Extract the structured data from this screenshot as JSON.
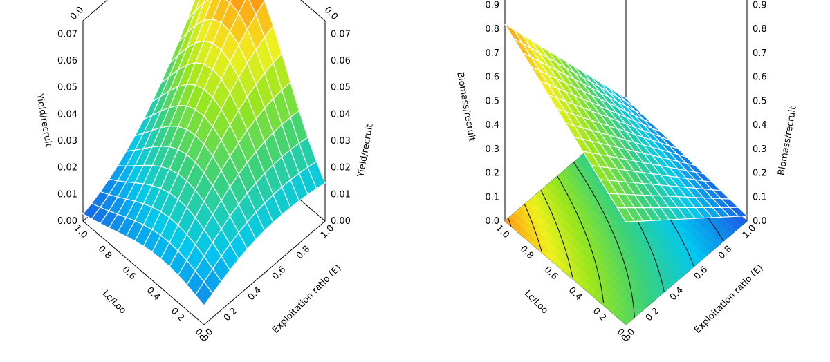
{
  "chart_data": [
    {
      "type": "surface3d",
      "title": "",
      "x_axis": {
        "label": "Exploitation ratio (E)",
        "ticks": [
          "0.0",
          "0.2",
          "0.4",
          "0.6",
          "0.8",
          "1.0"
        ],
        "range": [
          0,
          1
        ]
      },
      "y_axis": {
        "label": "Lc/Loo",
        "ticks": [
          "0.0",
          "0.2",
          "0.4",
          "0.6",
          "0.8",
          "1.0"
        ],
        "range": [
          0,
          1
        ]
      },
      "z_axis": {
        "label": "Yield/recruit",
        "ticks": [
          "0.00",
          "0.01",
          "0.02",
          "0.03",
          "0.04",
          "0.05",
          "0.06",
          "0.07"
        ],
        "range": [
          0,
          0.075
        ]
      },
      "surface_peak": {
        "E": 1.0,
        "Lc_Loo": 0.6,
        "value": 0.072
      },
      "contour_levels": [
        0.01,
        0.02,
        0.03,
        0.04,
        0.05,
        0.06,
        0.07
      ]
    },
    {
      "type": "surface3d",
      "title": "",
      "x_axis": {
        "label": "Exploitation ratio (E)",
        "ticks": [
          "0.0",
          "0.2",
          "0.4",
          "0.6",
          "0.8",
          "1.0"
        ],
        "range": [
          0,
          1
        ]
      },
      "y_axis": {
        "label": "Lc/Loo",
        "ticks": [
          "0.0",
          "0.2",
          "0.4",
          "0.6",
          "0.8",
          "1.0"
        ],
        "range": [
          0,
          1
        ]
      },
      "z_axis": {
        "label": "Biomass/recruit",
        "ticks": [
          "0.0",
          "0.1",
          "0.2",
          "0.3",
          "0.4",
          "0.5",
          "0.6",
          "0.7",
          "0.8",
          "0.9"
        ],
        "range": [
          0,
          0.95
        ]
      },
      "surface_peak": {
        "E": 0.0,
        "Lc_Loo": 1.0,
        "value": 0.87
      },
      "contour_levels": [
        0.1,
        0.2,
        0.3,
        0.4,
        0.5,
        0.6,
        0.7,
        0.8
      ]
    }
  ]
}
